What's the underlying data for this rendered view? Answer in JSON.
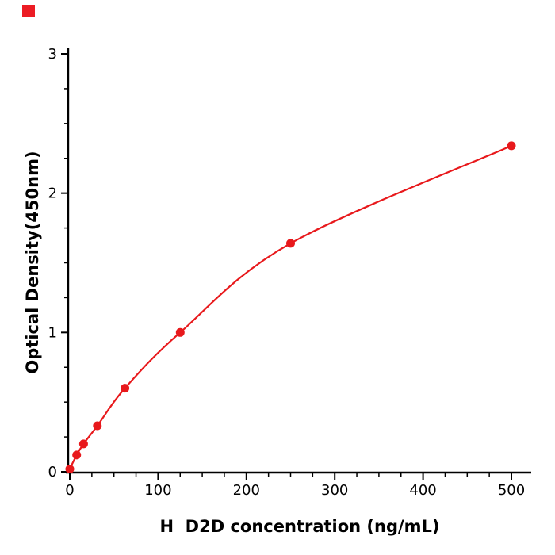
{
  "page": {
    "background_color": "#ffffff"
  },
  "brand_mark": {
    "color": "#ec1c24"
  },
  "chart_data": {
    "type": "scatter",
    "subtype": "standard-curve-with-fitted-line",
    "title": "",
    "xlabel": "H  D2D concentration (ng/mL)",
    "ylabel": "Optical Density(450nm)",
    "x": [
      0,
      7.8,
      15.6,
      31.25,
      62.5,
      125,
      250,
      500
    ],
    "y": [
      0.02,
      0.12,
      0.2,
      0.33,
      0.6,
      1.0,
      1.64,
      2.34
    ],
    "xlim": [
      0,
      500
    ],
    "ylim": [
      0,
      3
    ],
    "x_ticks": [
      0,
      100,
      200,
      300,
      400,
      500
    ],
    "y_ticks": [
      0,
      1,
      2,
      3
    ],
    "x_minor_step": 25,
    "y_minor_step": 0.25,
    "line_color": "#e8191c",
    "marker_color": "#e8191c",
    "marker_shape": "circle",
    "axis_color": "#000000",
    "grid": false,
    "legend": "none"
  }
}
